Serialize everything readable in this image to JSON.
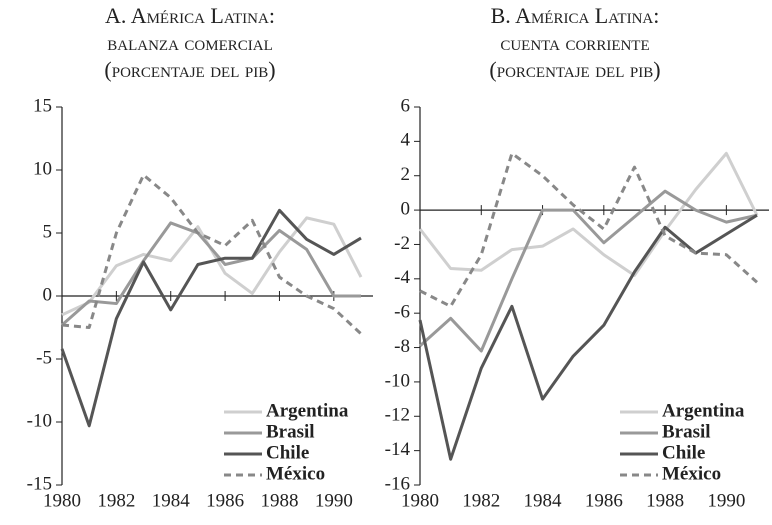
{
  "chart_data": [
    {
      "type": "line",
      "title": [
        "A. América Latina:",
        "balanza comercial",
        "(porcentaje del pib)"
      ],
      "x": [
        1980,
        1981,
        1982,
        1983,
        1984,
        1985,
        1986,
        1987,
        1988,
        1989,
        1990,
        1991
      ],
      "xlim": [
        1980,
        1991
      ],
      "xticks": [
        1980,
        1982,
        1984,
        1986,
        1988,
        1990
      ],
      "ylim": [
        -15,
        15
      ],
      "yticks": [
        -15,
        -10,
        -5,
        0,
        5,
        10,
        15
      ],
      "series": [
        {
          "name": "Argentina",
          "color": "#cfcfcf",
          "values": [
            -1.5,
            -0.5,
            2.4,
            3.3,
            2.8,
            5.5,
            1.8,
            0.2,
            3.5,
            6.2,
            5.7,
            1.5
          ]
        },
        {
          "name": "Brasil",
          "color": "#999999",
          "values": [
            -2.3,
            -0.4,
            -0.6,
            2.8,
            5.8,
            5.0,
            2.5,
            3.0,
            5.2,
            3.7,
            0,
            0
          ]
        },
        {
          "name": "Chile",
          "color": "#555555",
          "values": [
            -4.2,
            -10.3,
            -1.8,
            2.7,
            -1.1,
            2.5,
            3.0,
            3.0,
            6.8,
            4.5,
            3.3,
            4.6
          ]
        },
        {
          "name": "México",
          "color": "#888888",
          "dashed": true,
          "values": [
            -2.3,
            -2.5,
            5.0,
            9.6,
            7.8,
            5.0,
            4.0,
            6.0,
            1.5,
            0,
            -1.0,
            -3.0
          ]
        }
      ]
    },
    {
      "type": "line",
      "title": [
        "B. América Latina:",
        "cuenta corriente",
        "(porcentaje del pib)"
      ],
      "x": [
        1980,
        1981,
        1982,
        1983,
        1984,
        1985,
        1986,
        1987,
        1988,
        1989,
        1990,
        1991
      ],
      "xlim": [
        1980,
        1991
      ],
      "xticks": [
        1980,
        1982,
        1984,
        1986,
        1988,
        1990
      ],
      "ylim": [
        -16,
        6
      ],
      "yticks": [
        -16,
        -14,
        -12,
        -10,
        -8,
        -6,
        -4,
        -2,
        0,
        2,
        4,
        6
      ],
      "series": [
        {
          "name": "Argentina",
          "color": "#cfcfcf",
          "values": [
            -1.1,
            -3.4,
            -3.5,
            -2.3,
            -2.1,
            -1.1,
            -2.6,
            -3.8,
            -1.2,
            1.2,
            3.3,
            -0.3
          ]
        },
        {
          "name": "Brasil",
          "color": "#999999",
          "values": [
            -7.9,
            -6.3,
            -8.2,
            -4.0,
            0,
            0,
            -1.9,
            -0.4,
            1.1,
            0,
            -0.7,
            -0.3
          ]
        },
        {
          "name": "Chile",
          "color": "#555555",
          "values": [
            -6.4,
            -14.5,
            -9.2,
            -5.6,
            -11.0,
            -8.5,
            -6.7,
            -3.6,
            -1.0,
            -2.5,
            -1.4,
            -0.3
          ]
        },
        {
          "name": "México",
          "color": "#888888",
          "dashed": true,
          "values": [
            -4.7,
            -5.6,
            -2.6,
            3.3,
            2.0,
            0.3,
            -1.1,
            2.5,
            -1.5,
            -2.5,
            -2.6,
            -4.2
          ]
        }
      ]
    }
  ]
}
